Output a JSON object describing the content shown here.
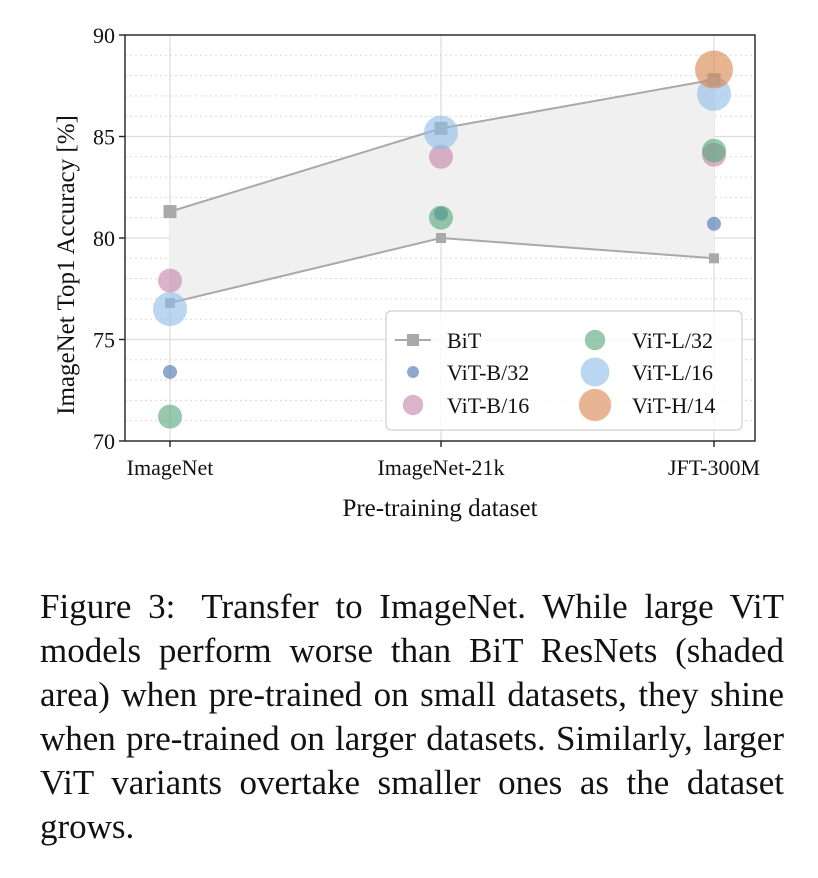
{
  "chart_data": {
    "type": "scatter",
    "xlabel": "Pre-training dataset",
    "ylabel": "ImageNet Top1 Accuracy [%]",
    "categories": [
      "ImageNet",
      "ImageNet-21k",
      "JFT-300M"
    ],
    "ylim": [
      70,
      90
    ],
    "yticks": [
      "70",
      "75",
      "80",
      "85",
      "90"
    ],
    "minor_ygrid": true,
    "grid": true,
    "legend_position": "bottom-right",
    "bit_band": {
      "name": "BiT",
      "color": "#a9a9a9",
      "fill": "#f0f0f0",
      "upper": [
        81.3,
        85.4,
        87.8
      ],
      "lower": [
        76.8,
        80.0,
        79.0
      ]
    },
    "series": [
      {
        "name": "ViT-B/32",
        "color": "#4c72b0",
        "marker_size": "small",
        "values": [
          73.4,
          81.2,
          80.7
        ]
      },
      {
        "name": "ViT-B/16",
        "color": "#c586ad",
        "marker_size": "medium",
        "values": [
          77.9,
          84.0,
          84.1
        ]
      },
      {
        "name": "ViT-L/32",
        "color": "#55a87b",
        "marker_size": "medium",
        "values": [
          71.2,
          81.0,
          84.3
        ]
      },
      {
        "name": "ViT-L/16",
        "color": "#8fbde8",
        "marker_size": "large",
        "values": [
          76.5,
          85.2,
          87.1
        ]
      },
      {
        "name": "ViT-H/14",
        "color": "#d9874f",
        "marker_size": "largest",
        "values": [
          null,
          null,
          88.3
        ]
      }
    ],
    "legend_order": [
      "BiT",
      "ViT-L/32",
      "ViT-B/32",
      "ViT-L/16",
      "ViT-B/16",
      "ViT-H/14"
    ]
  },
  "caption": {
    "label": "Figure 3:",
    "text": "Transfer to ImageNet. While large ViT models perform worse than BiT ResNets (shaded area) when pre-trained on small datasets, they shine when pre-trained on larger datasets. Similarly, larger ViT variants overtake smaller ones as the dataset grows."
  }
}
